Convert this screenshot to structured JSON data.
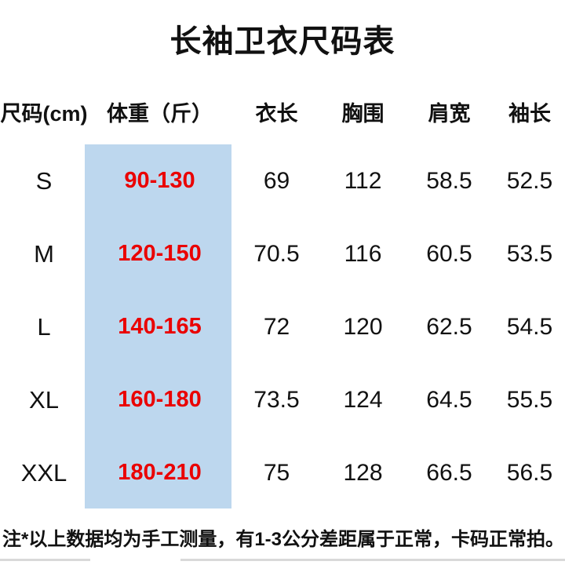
{
  "title": "长袖卫衣尺码表",
  "table": {
    "headers": {
      "size": "尺码(cm)",
      "weight": "体重（斤）",
      "length": "衣长",
      "chest": "胸围",
      "shoulder": "肩宽",
      "sleeve": "袖长"
    },
    "rows": [
      {
        "size": "S",
        "weight": "90-130",
        "length": "69",
        "chest": "112",
        "shoulder": "58.5",
        "sleeve": "52.5"
      },
      {
        "size": "M",
        "weight": "120-150",
        "length": "70.5",
        "chest": "116",
        "shoulder": "60.5",
        "sleeve": "53.5"
      },
      {
        "size": "L",
        "weight": "140-165",
        "length": "72",
        "chest": "120",
        "shoulder": "62.5",
        "sleeve": "54.5"
      },
      {
        "size": "XL",
        "weight": "160-180",
        "length": "73.5",
        "chest": "124",
        "shoulder": "64.5",
        "sleeve": "55.5"
      },
      {
        "size": "XXL",
        "weight": "180-210",
        "length": "75",
        "chest": "128",
        "shoulder": "66.5",
        "sleeve": "56.5"
      }
    ]
  },
  "note": "注*以上数据均为手工测量，有1-3公分差距属于正常，卡码正常拍。",
  "colors": {
    "highlight_bg": "#bdd7ee",
    "highlight_text": "#ea0000",
    "text": "#111111"
  }
}
